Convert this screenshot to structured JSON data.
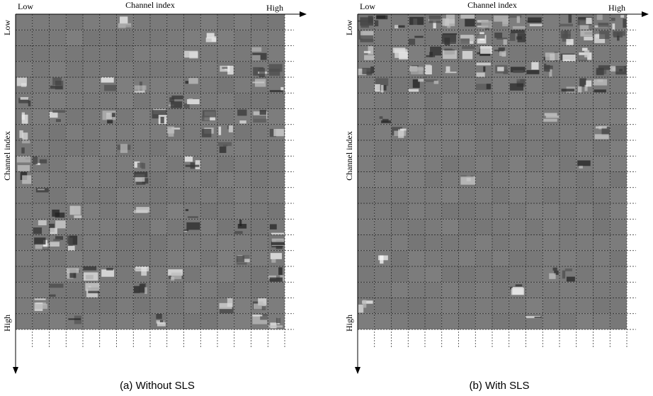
{
  "panels": [
    {
      "top_axis": {
        "low": "Low",
        "label": "Channel index",
        "high": "High"
      },
      "left_axis": {
        "low": "Low",
        "label": "Channel index",
        "high": "High"
      },
      "caption": "(a)  Without  SLS"
    },
    {
      "top_axis": {
        "low": "Low",
        "label": "Channel index",
        "high": "High"
      },
      "left_axis": {
        "low": "Low",
        "label": "Channel index",
        "high": "High"
      },
      "caption": "(b)  With  SLS"
    }
  ]
}
